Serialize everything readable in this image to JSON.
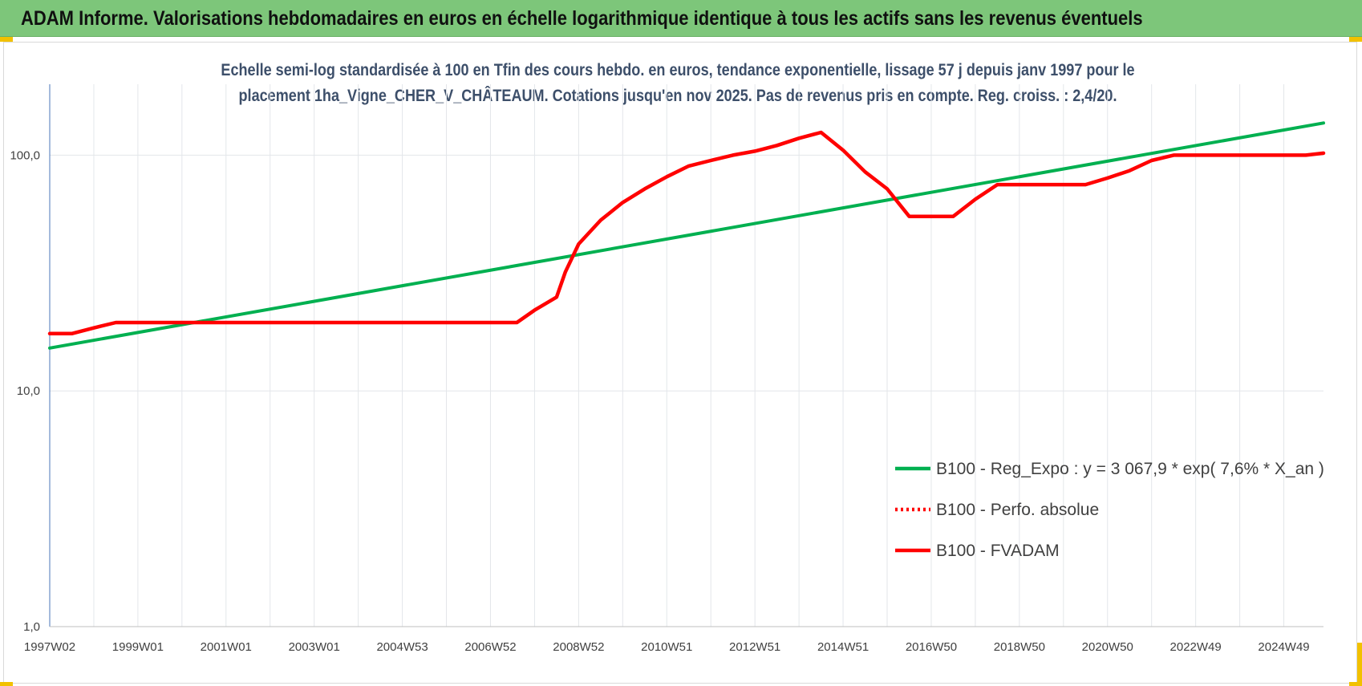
{
  "header": {
    "title": "ADAM Informe. Valorisations hebdomadaires en euros en échelle logarithmique identique à tous les actifs sans les revenus éventuels"
  },
  "chart_data": {
    "type": "line",
    "title_line1": "Echelle semi-log standardisée à 100 en Tfin des cours hebdo. en euros, tendance exponentielle, lissage 57 j depuis janv 1997 pour le",
    "title_line2": "placement 1ha_Vigne_CHER_V_CHÂTEAUM. Cotations jusqu'en nov 2025. Pas de revenus pris en compte. Reg. croiss. : 2,4/20.",
    "y_scale": "log",
    "ylim": [
      1,
      200
    ],
    "xlim": [
      1997.0,
      2025.9
    ],
    "y_ticks": [
      1,
      10,
      100
    ],
    "y_tick_labels": [
      "1,0",
      "10,0",
      "100,0"
    ],
    "x_tick_positions": [
      1997.0,
      1999.0,
      2001.0,
      2003.0,
      2005.0,
      2007.0,
      2009.0,
      2011.0,
      2013.0,
      2015.0,
      2017.0,
      2019.0,
      2021.0,
      2023.0,
      2025.0
    ],
    "x_tick_labels": [
      "1997W02",
      "1999W01",
      "2001W01",
      "2003W01",
      "2004W53",
      "2006W52",
      "2008W52",
      "2010W51",
      "2012W51",
      "2014W51",
      "2016W50",
      "2018W50",
      "2020W50",
      "2022W49",
      "2024W49"
    ],
    "grid": true,
    "legend_position": "bottom-right",
    "series": [
      {
        "name": "B100 - Reg_Expo : y = 3 067,9 * exp( 7,6% *  X_an )",
        "color": "#00b050",
        "style": "solid",
        "x": [
          1997.0,
          2025.9
        ],
        "y": [
          15.2,
          137
        ]
      },
      {
        "name": "B100 - Perfo. absolue",
        "color": "#ff0000",
        "style": "dotted",
        "x": [],
        "y": []
      },
      {
        "name": "B100 - FVADAM",
        "color": "#ff0000",
        "style": "solid",
        "x": [
          1997.0,
          1997.5,
          1998.0,
          1998.5,
          2000.0,
          2003.0,
          2006.0,
          2007.6,
          2008.0,
          2008.5,
          2008.7,
          2009.0,
          2009.5,
          2010.0,
          2010.5,
          2011.0,
          2011.5,
          2012.0,
          2012.5,
          2013.0,
          2013.5,
          2014.0,
          2014.5,
          2015.0,
          2015.5,
          2016.0,
          2016.5,
          2017.5,
          2018.0,
          2018.5,
          2019.0,
          2020.0,
          2020.5,
          2021.0,
          2021.5,
          2022.0,
          2022.5,
          2023.0,
          2024.0,
          2025.5,
          2025.9
        ],
        "y": [
          17.5,
          17.5,
          18.5,
          19.5,
          19.5,
          19.5,
          19.5,
          19.5,
          22,
          25,
          32,
          42,
          53,
          63,
          72,
          81,
          90,
          95,
          100,
          104,
          110,
          118,
          125,
          105,
          85,
          72,
          55,
          55,
          65,
          75,
          75,
          75,
          75,
          80,
          86,
          95,
          100,
          100,
          100,
          100,
          102
        ]
      }
    ]
  }
}
